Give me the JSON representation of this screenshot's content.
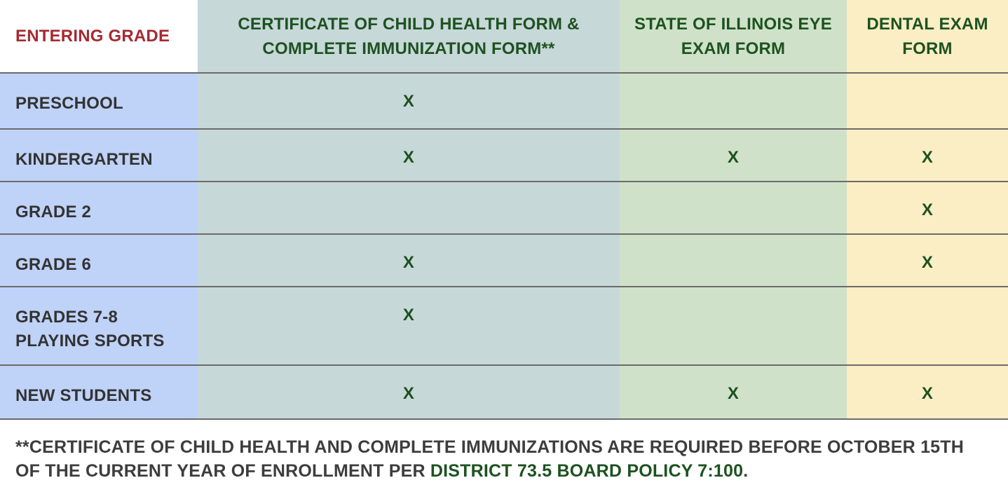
{
  "table": {
    "columns": [
      {
        "label": "ENTERING GRADE"
      },
      {
        "label": "CERTIFICATE OF CHILD HEALTH FORM & COMPLETE IMMUNIZATION FORM**"
      },
      {
        "label": "STATE OF ILLINOIS EYE EXAM FORM"
      },
      {
        "label": "DENTAL EXAM FORM"
      }
    ],
    "mark_symbol": "X",
    "rows": [
      {
        "label": "PRESCHOOL",
        "cells": [
          "X",
          "",
          ""
        ]
      },
      {
        "label": "KINDERGARTEN",
        "cells": [
          "X",
          "X",
          "X"
        ]
      },
      {
        "label": "GRADE 2",
        "cells": [
          "",
          "",
          "X"
        ]
      },
      {
        "label": "GRADE 6",
        "cells": [
          "X",
          "",
          "X"
        ]
      },
      {
        "label": "GRADES 7-8 PLAYING SPORTS",
        "cells": [
          "X",
          "",
          ""
        ]
      },
      {
        "label": "NEW STUDENTS",
        "cells": [
          "X",
          "X",
          "X"
        ]
      }
    ]
  },
  "footnote": {
    "prefix": "**CERTIFICATE OF CHILD HEALTH AND COMPLETE IMMUNIZATIONS ARE REQUIRED BEFORE OCTOBER 15TH OF THE CURRENT YEAR OF ENROLLMENT PER ",
    "link_text": "DISTRICT 73.5 BOARD POLICY 7:100",
    "suffix": "."
  },
  "colors": {
    "entering_grade_text": "#a52a33",
    "header_text_green": "#1d5220",
    "row_label_column_bg": "#bfd2f8",
    "health_column_bg": "#c7d8d9",
    "eye_column_bg": "#cfe2c9",
    "dental_column_bg": "#fbedc4",
    "mark_green": "#1d511f",
    "row_border": "#6b6b6b",
    "footnote_text": "#3d3d3d",
    "policy_link_green": "#1d5220"
  }
}
